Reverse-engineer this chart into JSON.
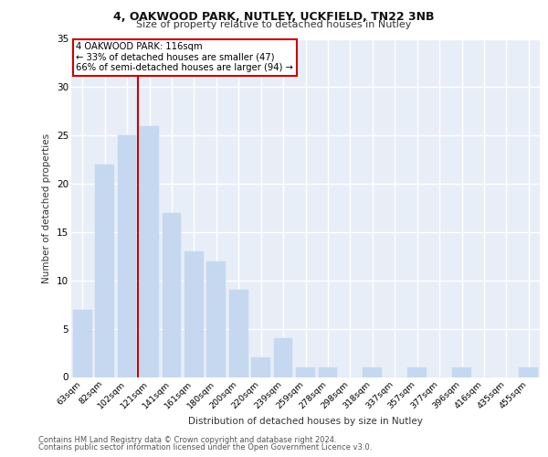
{
  "title1": "4, OAKWOOD PARK, NUTLEY, UCKFIELD, TN22 3NB",
  "title2": "Size of property relative to detached houses in Nutley",
  "xlabel": "Distribution of detached houses by size in Nutley",
  "ylabel": "Number of detached properties",
  "categories": [
    "63sqm",
    "82sqm",
    "102sqm",
    "121sqm",
    "141sqm",
    "161sqm",
    "180sqm",
    "200sqm",
    "220sqm",
    "239sqm",
    "259sqm",
    "278sqm",
    "298sqm",
    "318sqm",
    "337sqm",
    "357sqm",
    "377sqm",
    "396sqm",
    "416sqm",
    "435sqm",
    "455sqm"
  ],
  "values": [
    7,
    22,
    25,
    26,
    17,
    13,
    12,
    9,
    2,
    4,
    1,
    1,
    0,
    1,
    0,
    1,
    0,
    1,
    0,
    0,
    1
  ],
  "bar_color": "#c5d8f0",
  "bar_edgecolor": "#c5d8f0",
  "property_line_x": 2.5,
  "property_label": "4 OAKWOOD PARK: 116sqm",
  "annotation_line1": "← 33% of detached houses are smaller (47)",
  "annotation_line2": "66% of semi-detached houses are larger (94) →",
  "annotation_box_color": "#ffffff",
  "annotation_box_edgecolor": "#cc0000",
  "vline_color": "#cc0000",
  "ylim": [
    0,
    35
  ],
  "yticks": [
    0,
    5,
    10,
    15,
    20,
    25,
    30,
    35
  ],
  "background_color": "#e8eef8",
  "grid_color": "#ffffff",
  "footnote1": "Contains HM Land Registry data © Crown copyright and database right 2024.",
  "footnote2": "Contains public sector information licensed under the Open Government Licence v3.0."
}
